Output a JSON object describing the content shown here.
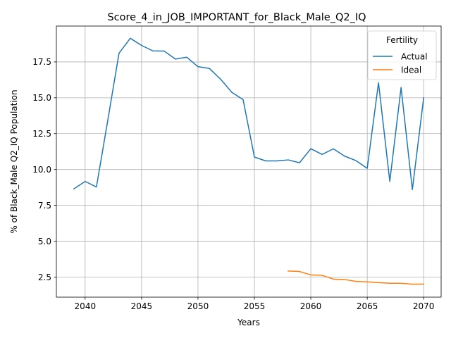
{
  "chart_data": {
    "type": "line",
    "title": "Score_4_in_JOB_IMPORTANT_for_Black_Male_Q2_IQ",
    "xlabel": "Years",
    "ylabel": "% of Black_Male Q2_IQ Population",
    "xlim": [
      2037.45,
      2071.55
    ],
    "ylim": [
      1.1,
      20.0
    ],
    "xticks": [
      2040,
      2045,
      2050,
      2055,
      2060,
      2065,
      2070
    ],
    "yticks": [
      2.5,
      5.0,
      7.5,
      10.0,
      12.5,
      15.0,
      17.5
    ],
    "xtick_labels": [
      "2040",
      "2045",
      "2050",
      "2055",
      "2060",
      "2065",
      "2070"
    ],
    "ytick_labels": [
      "2.5",
      "5.0",
      "7.5",
      "10.0",
      "12.5",
      "15.0",
      "17.5"
    ],
    "grid": true,
    "legend": {
      "title": "Fertility",
      "placement": "top-right"
    },
    "series": [
      {
        "name": "Actual",
        "color": "#1f77b4",
        "x": [
          2039,
          2040,
          2041,
          2042,
          2043,
          2044,
          2045,
          2046,
          2047,
          2048,
          2049,
          2050,
          2051,
          2052,
          2053,
          2054,
          2055,
          2056,
          2057,
          2058,
          2059,
          2060,
          2061,
          2062,
          2063,
          2064,
          2065,
          2066,
          2067,
          2068,
          2069,
          2070
        ],
        "y": [
          8.65,
          9.17,
          8.78,
          13.4,
          18.1,
          19.15,
          18.65,
          18.27,
          18.26,
          17.7,
          17.83,
          17.17,
          17.05,
          16.3,
          15.38,
          14.87,
          10.87,
          10.6,
          10.6,
          10.67,
          10.47,
          11.45,
          11.05,
          11.44,
          10.93,
          10.62,
          10.08,
          16.05,
          9.17,
          15.72,
          8.6,
          15.0
        ]
      },
      {
        "name": "Ideal",
        "color": "#ff7f0e",
        "x": [
          2058,
          2059,
          2060,
          2061,
          2062,
          2063,
          2064,
          2065,
          2066,
          2067,
          2068,
          2069,
          2070
        ],
        "y": [
          2.92,
          2.89,
          2.65,
          2.62,
          2.36,
          2.33,
          2.2,
          2.17,
          2.11,
          2.07,
          2.07,
          2.0,
          2.01
        ]
      }
    ]
  }
}
